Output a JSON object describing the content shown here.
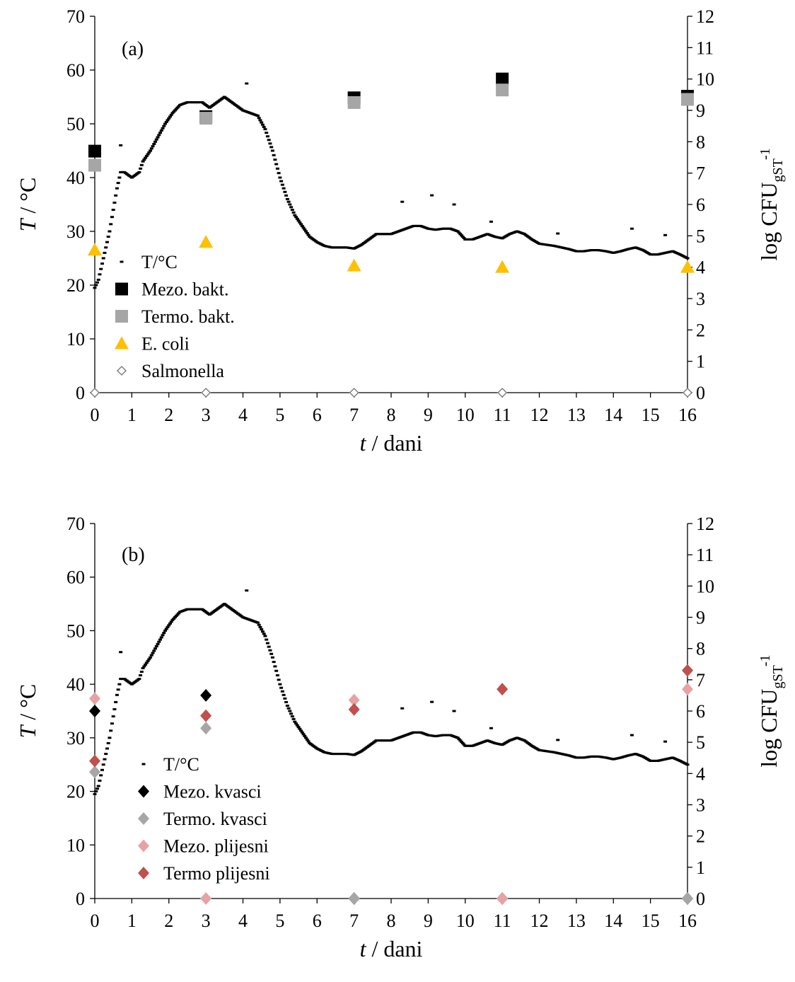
{
  "chart_data": [
    {
      "type": "scatter",
      "panel_label": "(a)",
      "xlabel": {
        "italic": "t",
        "rest": " / dani"
      },
      "ylabel": {
        "italic": "T",
        "rest": " / °C"
      },
      "y2label": {
        "main": "log CFU",
        "sub": "gST",
        "sup": "-1"
      },
      "xlim": [
        0,
        16
      ],
      "ylim": [
        0,
        70
      ],
      "y2lim": [
        0,
        12
      ],
      "xticks": [
        "0",
        "1",
        "2",
        "3",
        "4",
        "5",
        "6",
        "7",
        "8",
        "9",
        "10",
        "11",
        "12",
        "13",
        "14",
        "15",
        "16"
      ],
      "yticks": [
        "0",
        "10",
        "20",
        "30",
        "40",
        "50",
        "60",
        "70"
      ],
      "y2ticks": [
        "0",
        "1",
        "2",
        "3",
        "4",
        "5",
        "6",
        "7",
        "8",
        "9",
        "10",
        "11",
        "12"
      ],
      "legend_position": "lower-left",
      "series": [
        {
          "name": "Mezo. bakt.",
          "axis": "right",
          "marker": "square",
          "color": "#000000",
          "x": [
            0,
            3,
            7,
            11,
            16
          ],
          "y": [
            7.7,
            8.8,
            9.4,
            10.0,
            9.45
          ]
        },
        {
          "name": "Termo. bakt.",
          "axis": "right",
          "marker": "square",
          "color": "#a6a6a6",
          "x": [
            0,
            3,
            7,
            11,
            16
          ],
          "y": [
            7.25,
            8.75,
            9.25,
            9.65,
            9.35
          ]
        },
        {
          "name": "E. coli",
          "axis": "right",
          "marker": "triangle",
          "color": "#ffc000",
          "x": [
            0,
            3,
            7,
            11,
            16
          ],
          "y": [
            4.55,
            4.8,
            4.05,
            4.0,
            4.0
          ]
        },
        {
          "name": "Salmonella",
          "axis": "right",
          "marker": "diamond-open",
          "color": "#808080",
          "x": [
            0,
            3,
            7,
            11,
            16
          ],
          "y": [
            0,
            0,
            0,
            0,
            0
          ]
        }
      ],
      "temperature_series": {
        "name": "T/°C",
        "axis": "left",
        "marker": "dash",
        "color": "#000000",
        "x": [
          0,
          0.1,
          0.2,
          0.3,
          0.4,
          0.5,
          0.6,
          0.7,
          0.8,
          0.9,
          1.0,
          1.1,
          1.2,
          1.3,
          1.5,
          1.7,
          1.9,
          2.1,
          2.3,
          2.5,
          2.7,
          2.9,
          3.0,
          3.1,
          3.2,
          3.3,
          3.4,
          3.5,
          3.6,
          3.7,
          3.8,
          3.9,
          4.0,
          4.2,
          4.4,
          4.6,
          4.8,
          5.0,
          5.2,
          5.4,
          5.6,
          5.8,
          6.0,
          6.2,
          6.4,
          6.6,
          6.8,
          7.0,
          7.2,
          7.4,
          7.6,
          7.8,
          8.0,
          8.2,
          8.4,
          8.6,
          8.8,
          9.0,
          9.2,
          9.4,
          9.6,
          9.8,
          10.0,
          10.2,
          10.4,
          10.6,
          10.8,
          11.0,
          11.2,
          11.4,
          11.6,
          11.8,
          12.0,
          12.2,
          12.4,
          12.6,
          12.8,
          13.0,
          13.2,
          13.4,
          13.6,
          13.8,
          14.0,
          14.2,
          14.4,
          14.6,
          14.8,
          15.0,
          15.2,
          15.4,
          15.6,
          15.8,
          16.0
        ],
        "y": [
          19.5,
          21,
          24,
          27,
          30,
          34,
          38,
          41,
          41,
          40.5,
          40,
          40.5,
          41,
          43,
          45,
          47.5,
          50,
          52,
          53.5,
          54,
          54,
          54,
          53.5,
          53,
          53.5,
          54,
          54.5,
          55,
          54.5,
          54,
          53.5,
          53,
          52.5,
          52,
          51.5,
          49,
          45,
          40,
          36,
          33,
          31,
          29,
          28,
          27.3,
          27,
          27,
          27,
          26.8,
          27.5,
          28.5,
          29.5,
          29.5,
          29.5,
          30,
          30.5,
          31,
          31,
          30.5,
          30.3,
          30.5,
          30.5,
          30,
          28.5,
          28.5,
          29,
          29.5,
          29,
          28.7,
          29.5,
          30,
          29.5,
          28.5,
          27.7,
          27.5,
          27.3,
          27,
          26.7,
          26.3,
          26.3,
          26.5,
          26.5,
          26.3,
          26,
          26.3,
          26.7,
          27,
          26.5,
          25.7,
          25.7,
          26,
          26.3,
          25.7,
          25
        ],
        "outliers_x": [
          0.7,
          4.1,
          8.3,
          9.1,
          9.7,
          10.7,
          12.5,
          14.5,
          15.4
        ],
        "outliers_y": [
          46,
          57.5,
          35.5,
          36.7,
          35,
          31.8,
          29.6,
          30.5,
          29.3
        ]
      }
    },
    {
      "type": "scatter",
      "panel_label": "(b)",
      "xlabel": {
        "italic": "t",
        "rest": " / dani"
      },
      "ylabel": {
        "italic": "T",
        "rest": " / °C"
      },
      "y2label": {
        "main": "log CFU",
        "sub": "gST",
        "sup": "-1"
      },
      "xlim": [
        0,
        16
      ],
      "ylim": [
        0,
        70
      ],
      "y2lim": [
        0,
        12
      ],
      "xticks": [
        "0",
        "1",
        "2",
        "3",
        "4",
        "5",
        "6",
        "7",
        "8",
        "9",
        "10",
        "11",
        "12",
        "13",
        "14",
        "15",
        "16"
      ],
      "yticks": [
        "0",
        "10",
        "20",
        "30",
        "40",
        "50",
        "60",
        "70"
      ],
      "y2ticks": [
        "0",
        "1",
        "2",
        "3",
        "4",
        "5",
        "6",
        "7",
        "8",
        "9",
        "10",
        "11",
        "12"
      ],
      "legend_position": "lower-left",
      "series": [
        {
          "name": "Mezo. kvasci",
          "axis": "right",
          "marker": "diamond",
          "color": "#000000",
          "x": [
            0,
            3,
            7,
            11,
            16
          ],
          "y": [
            6.0,
            6.5,
            0,
            0,
            0
          ]
        },
        {
          "name": "Termo. kvasci",
          "axis": "right",
          "marker": "diamond",
          "color": "#a6a6a6",
          "x": [
            0,
            3,
            7,
            11,
            16
          ],
          "y": [
            4.05,
            5.45,
            0,
            0,
            0
          ]
        },
        {
          "name": "Mezo. plijesni",
          "axis": "right",
          "marker": "diamond",
          "color": "#e6a3a3",
          "x": [
            0,
            3,
            7,
            11,
            16
          ],
          "y": [
            6.4,
            0,
            6.35,
            0,
            6.7
          ]
        },
        {
          "name": "Termo plijesni",
          "axis": "right",
          "marker": "diamond",
          "color": "#c0504d",
          "x": [
            0,
            3,
            7,
            11,
            16
          ],
          "y": [
            4.4,
            5.85,
            6.05,
            6.7,
            7.3
          ]
        }
      ],
      "temperature_series": {
        "name": "T/°C",
        "axis": "left",
        "marker": "dash",
        "color": "#000000",
        "x": [
          0,
          0.1,
          0.2,
          0.3,
          0.4,
          0.5,
          0.6,
          0.7,
          0.8,
          0.9,
          1.0,
          1.1,
          1.2,
          1.3,
          1.5,
          1.7,
          1.9,
          2.1,
          2.3,
          2.5,
          2.7,
          2.9,
          3.0,
          3.1,
          3.2,
          3.3,
          3.4,
          3.5,
          3.6,
          3.7,
          3.8,
          3.9,
          4.0,
          4.2,
          4.4,
          4.6,
          4.8,
          5.0,
          5.2,
          5.4,
          5.6,
          5.8,
          6.0,
          6.2,
          6.4,
          6.6,
          6.8,
          7.0,
          7.2,
          7.4,
          7.6,
          7.8,
          8.0,
          8.2,
          8.4,
          8.6,
          8.8,
          9.0,
          9.2,
          9.4,
          9.6,
          9.8,
          10.0,
          10.2,
          10.4,
          10.6,
          10.8,
          11.0,
          11.2,
          11.4,
          11.6,
          11.8,
          12.0,
          12.2,
          12.4,
          12.6,
          12.8,
          13.0,
          13.2,
          13.4,
          13.6,
          13.8,
          14.0,
          14.2,
          14.4,
          14.6,
          14.8,
          15.0,
          15.2,
          15.4,
          15.6,
          15.8,
          16.0
        ],
        "y": [
          19.5,
          21,
          24,
          27,
          30,
          34,
          38,
          41,
          41,
          40.5,
          40,
          40.5,
          41,
          43,
          45,
          47.5,
          50,
          52,
          53.5,
          54,
          54,
          54,
          53.5,
          53,
          53.5,
          54,
          54.5,
          55,
          54.5,
          54,
          53.5,
          53,
          52.5,
          52,
          51.5,
          49,
          45,
          40,
          36,
          33,
          31,
          29,
          28,
          27.3,
          27,
          27,
          27,
          26.8,
          27.5,
          28.5,
          29.5,
          29.5,
          29.5,
          30,
          30.5,
          31,
          31,
          30.5,
          30.3,
          30.5,
          30.5,
          30,
          28.5,
          28.5,
          29,
          29.5,
          29,
          28.7,
          29.5,
          30,
          29.5,
          28.5,
          27.7,
          27.5,
          27.3,
          27,
          26.7,
          26.3,
          26.3,
          26.5,
          26.5,
          26.3,
          26,
          26.3,
          26.7,
          27,
          26.5,
          25.7,
          25.7,
          26,
          26.3,
          25.7,
          25
        ],
        "outliers_x": [
          0.7,
          4.1,
          8.3,
          9.1,
          9.7,
          10.7,
          12.5,
          14.5,
          15.4
        ],
        "outliers_y": [
          46,
          57.5,
          35.5,
          36.7,
          35,
          31.8,
          29.6,
          30.5,
          29.3
        ]
      }
    }
  ]
}
